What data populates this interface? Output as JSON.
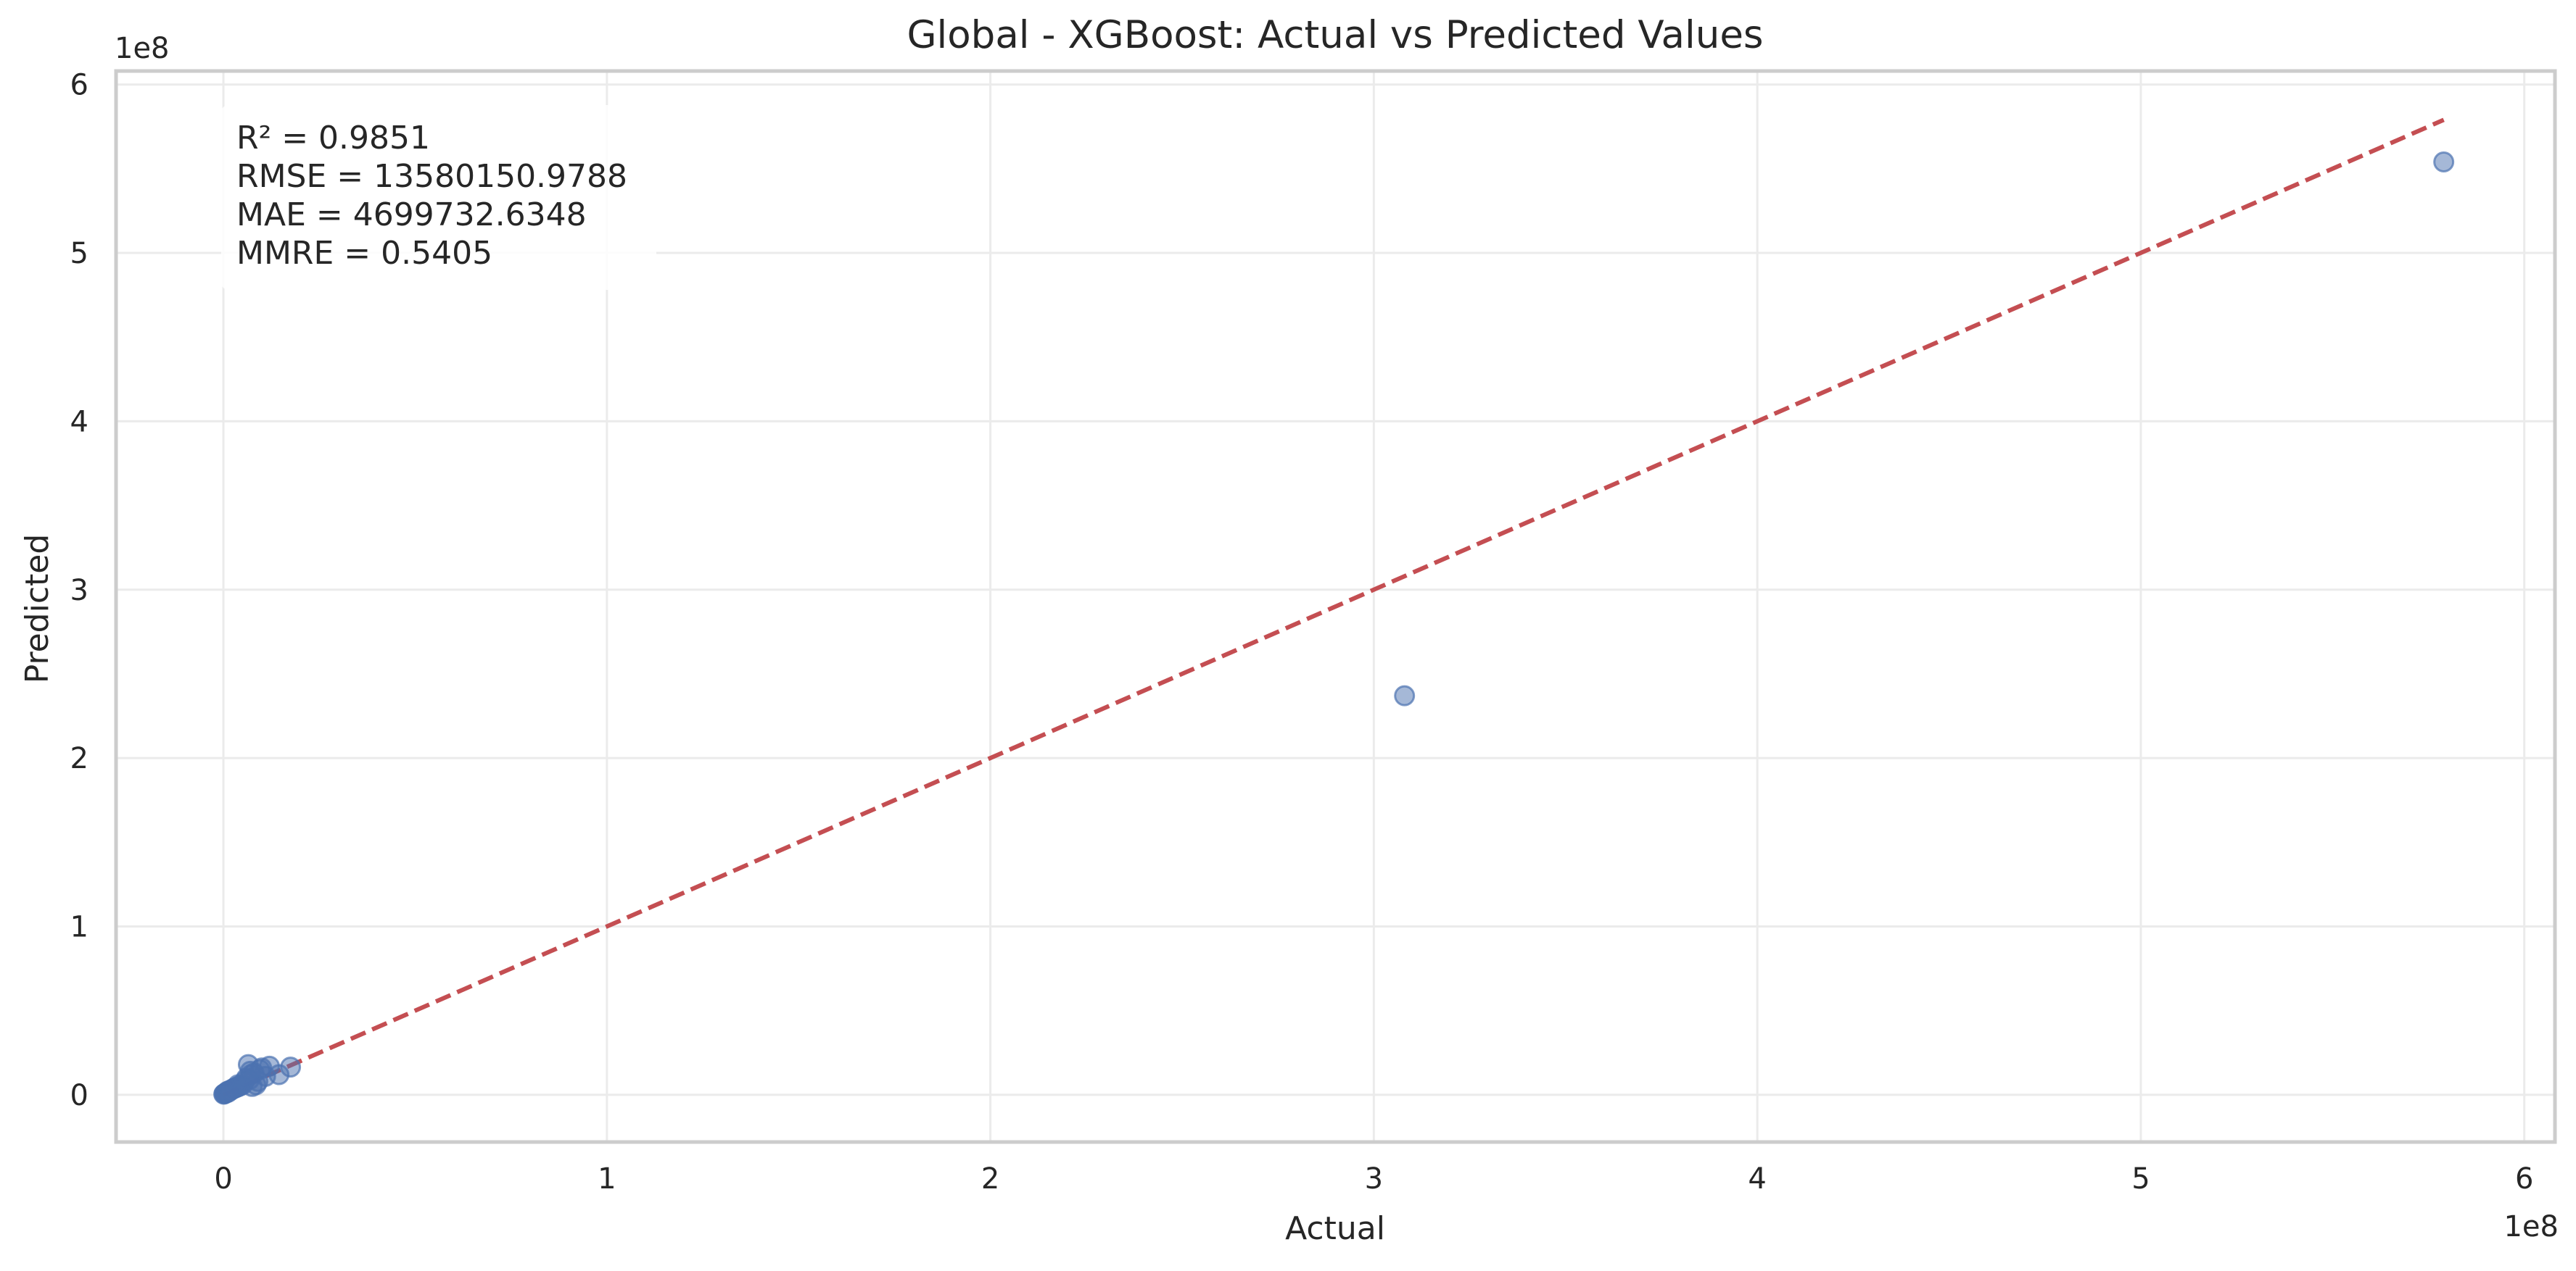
{
  "chart_data": {
    "type": "scatter",
    "title": "Global - XGBoost: Actual vs Predicted Values",
    "xlabel": "Actual",
    "ylabel": "Predicted",
    "x_offset_label": "1e8",
    "y_offset_label": "1e8",
    "xlim": [
      -28000000,
      608000000
    ],
    "ylim": [
      -28000000,
      608000000
    ],
    "x_ticks": [
      0,
      100000000,
      200000000,
      300000000,
      400000000,
      500000000,
      600000000
    ],
    "x_tick_labels": [
      "0",
      "1",
      "2",
      "3",
      "4",
      "5",
      "6"
    ],
    "y_ticks": [
      0,
      100000000,
      200000000,
      300000000,
      400000000,
      500000000,
      600000000
    ],
    "y_tick_labels": [
      "0",
      "1",
      "2",
      "3",
      "4",
      "5",
      "6"
    ],
    "grid": true,
    "stats": [
      "R² = 0.9851",
      "RMSE = 13580150.9788",
      "MAE = 4699732.6348",
      "MMRE = 0.5405"
    ],
    "reference_line": {
      "style": "dashed",
      "color": "#c44e52",
      "from": [
        0,
        0
      ],
      "to": [
        579000000,
        579000000
      ]
    },
    "points": {
      "color": "#4c72b0",
      "x": [
        579000000,
        308000000,
        17500000,
        14500000,
        12000000,
        11000000,
        10000000,
        9000000,
        8500000,
        7500000,
        7000000,
        6500000,
        6000000,
        5500000,
        5000000,
        4500000,
        4000000,
        3500000,
        3000000,
        2500000,
        2000000,
        1500000,
        1000000,
        800000,
        600000,
        400000,
        200000,
        100000,
        8000000,
        7200000,
        6800000,
        9500000,
        3800000,
        2800000,
        1800000,
        1200000
      ],
      "y": [
        554000000,
        237000000,
        16500000,
        12000000,
        17000000,
        11000000,
        16000000,
        8000000,
        6000000,
        5000000,
        14000000,
        18000000,
        10000000,
        8000000,
        6000000,
        5500000,
        5000000,
        4500000,
        4000000,
        3500000,
        3000000,
        2500000,
        2000000,
        1500000,
        1000000,
        800000,
        600000,
        400000,
        13000000,
        12000000,
        9000000,
        15000000,
        6000000,
        4000000,
        2500000,
        1500000
      ]
    }
  }
}
